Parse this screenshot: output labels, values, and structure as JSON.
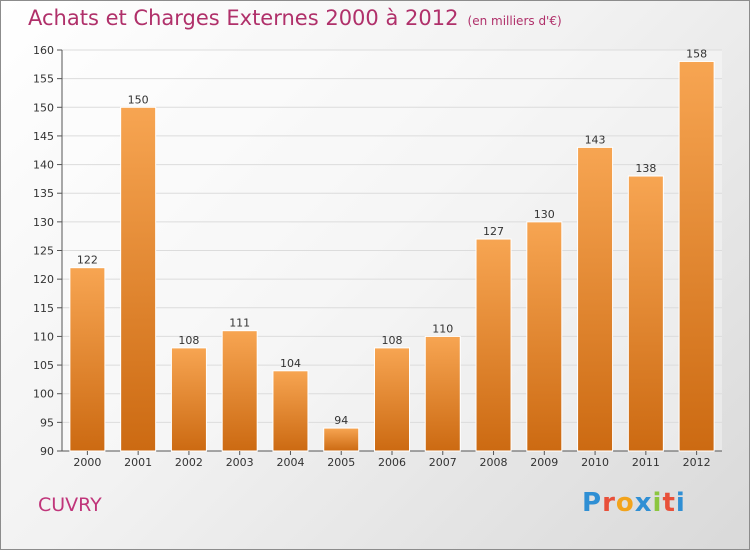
{
  "header": {
    "title": "Achats et Charges Externes 2000 à 2012",
    "unit": "(en milliers d'€)"
  },
  "footer": {
    "town": "CUVRY",
    "logo_text": "Proxiti"
  },
  "colors": {
    "title": "#b0306a",
    "bar_top": "#f7a552",
    "bar_bottom": "#cc6a12",
    "grid": "#dcdcdc"
  },
  "chart_data": {
    "type": "bar",
    "title": "Achats et Charges Externes 2000 à 2012",
    "xlabel": "",
    "ylabel": "",
    "ylim": [
      90,
      160
    ],
    "yticks": [
      90,
      95,
      100,
      105,
      110,
      115,
      120,
      125,
      130,
      135,
      140,
      145,
      150,
      155,
      160
    ],
    "grid": true,
    "categories": [
      "2000",
      "2001",
      "2002",
      "2003",
      "2004",
      "2005",
      "2006",
      "2007",
      "2008",
      "2009",
      "2010",
      "2011",
      "2012"
    ],
    "values": [
      122,
      150,
      108,
      111,
      104,
      94,
      108,
      110,
      127,
      130,
      143,
      138,
      158
    ]
  }
}
